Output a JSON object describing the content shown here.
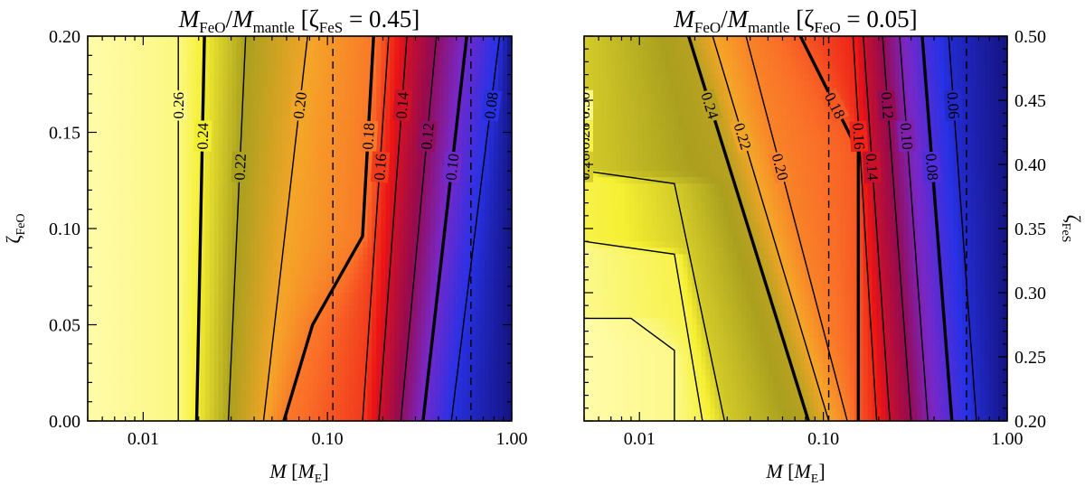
{
  "chart_data": [
    {
      "type": "heatmap",
      "title": "M_FeO/M_mantle [ζ_FeS = 0.45]",
      "title_parts": {
        "m1": "M",
        "s1": "FeO",
        "slash": "/",
        "m2": "M",
        "s2": "mantle",
        "open": " [",
        "zeta": "ζ",
        "sz": "FeS",
        "eq": " = 0.45]"
      },
      "xlabel": "M [M_E]",
      "xlabel_parts": {
        "m": "M",
        "open": " [",
        "mm": "M",
        "sub": "E",
        "close": "]"
      },
      "ylabel": "ζ_FeO",
      "ylabel_parts": {
        "z": "ζ",
        "sub": "FeO"
      },
      "x_scale": "log",
      "xlim": [
        0.005,
        1.0
      ],
      "ylim": [
        0.0,
        0.2
      ],
      "x_ticks": [
        "0.01",
        "0.10",
        "1.00"
      ],
      "y_ticks": [
        "0.00",
        "0.05",
        "0.10",
        "0.15",
        "0.20"
      ],
      "y_axis_side": "left",
      "vertical_dashed_lines_x": [
        0.107,
        0.6
      ],
      "colormap": "cream-yellow-olive-orange-red-purple-blue (high to low)",
      "value_range": [
        0.06,
        0.27
      ],
      "contours": [
        {
          "level": 0.26,
          "label": "0.26",
          "bold": false,
          "x_at_y": [
            [
              0.0,
              0.0155
            ],
            [
              0.2,
              0.0155
            ]
          ]
        },
        {
          "level": 0.24,
          "label": "0.24",
          "bold": true,
          "x_at_y": [
            [
              0.0,
              0.0195
            ],
            [
              0.2,
              0.0215
            ]
          ]
        },
        {
          "level": 0.22,
          "label": "0.22",
          "bold": false,
          "x_at_y": [
            [
              0.0,
              0.029
            ],
            [
              0.2,
              0.036
            ]
          ]
        },
        {
          "level": 0.2,
          "label": "0.20",
          "bold": false,
          "x_at_y": [
            [
              0.0,
              0.045
            ],
            [
              0.2,
              0.078
            ]
          ]
        },
        {
          "level": 0.18,
          "label": "0.18",
          "bold": true,
          "x_at_y": [
            [
              0.0,
              0.058
            ],
            [
              0.05,
              0.083
            ],
            [
              0.096,
              0.155
            ],
            [
              0.2,
              0.178
            ]
          ]
        },
        {
          "level": 0.16,
          "label": "0.16",
          "bold": false,
          "x_at_y": [
            [
              0.0,
              0.155
            ],
            [
              0.2,
              0.215
            ]
          ]
        },
        {
          "level": 0.14,
          "label": "0.14",
          "bold": false,
          "x_at_y": [
            [
              0.0,
              0.19
            ],
            [
              0.2,
              0.27
            ]
          ]
        },
        {
          "level": 0.12,
          "label": "0.12",
          "bold": false,
          "x_at_y": [
            [
              0.0,
              0.25
            ],
            [
              0.2,
              0.39
            ]
          ]
        },
        {
          "level": 0.1,
          "label": "0.10",
          "bold": true,
          "x_at_y": [
            [
              0.0,
              0.33
            ],
            [
              0.2,
              0.57
            ]
          ]
        },
        {
          "level": 0.08,
          "label": "0.08",
          "bold": false,
          "x_at_y": [
            [
              0.0,
              0.47
            ],
            [
              0.2,
              0.86
            ]
          ]
        }
      ]
    },
    {
      "type": "heatmap",
      "title": "M_FeO/M_mantle [ζ_FeO = 0.05]",
      "title_parts": {
        "m1": "M",
        "s1": "FeO",
        "slash": "/",
        "m2": "M",
        "s2": "mantle",
        "open": " [",
        "zeta": "ζ",
        "sz": "FeO",
        "eq": " = 0.05]"
      },
      "xlabel": "M [M_E]",
      "xlabel_parts": {
        "m": "M",
        "open": " [",
        "mm": "M",
        "sub": "E",
        "close": "]"
      },
      "ylabel": "ζ_FeS",
      "ylabel_parts": {
        "z": "ζ",
        "sub": "FeS"
      },
      "x_scale": "log",
      "xlim": [
        0.005,
        1.0
      ],
      "ylim": [
        0.2,
        0.5
      ],
      "x_ticks": [
        "0.01",
        "0.10",
        "1.00"
      ],
      "y_ticks": [
        "0.20",
        "0.25",
        "0.30",
        "0.35",
        "0.40",
        "0.45",
        "0.50"
      ],
      "y_axis_side": "right",
      "vertical_dashed_lines_x": [
        0.107,
        0.6
      ],
      "colormap": "cream-yellow-olive-orange-red-purple-blue (high to low)",
      "value_range": [
        0.04,
        0.31
      ],
      "contours": [
        {
          "level": 0.3,
          "label": "0.30",
          "bold": false,
          "x_at_y": [
            [
              0.2,
              0.0155
            ],
            [
              0.255,
              0.0155
            ],
            [
              0.28,
              0.009
            ],
            [
              0.28,
              0.005
            ]
          ]
        },
        {
          "level": 0.28,
          "label": "0.28",
          "bold": false,
          "x_at_y": [
            [
              0.2,
              0.022
            ],
            [
              0.33,
              0.0155
            ],
            [
              0.34,
              0.005
            ]
          ]
        },
        {
          "level": 0.26,
          "label": "0.26",
          "bold": false,
          "x_at_y": [
            [
              0.2,
              0.029
            ],
            [
              0.385,
              0.0155
            ],
            [
              0.395,
              0.005
            ]
          ]
        },
        {
          "level": 0.24,
          "label": "0.24",
          "bold": true,
          "x_at_y": [
            [
              0.2,
              0.083
            ],
            [
              0.5,
              0.0185
            ]
          ]
        },
        {
          "level": 0.22,
          "label": "0.22",
          "bold": false,
          "x_at_y": [
            [
              0.2,
              0.107
            ],
            [
              0.5,
              0.025
            ]
          ]
        },
        {
          "level": 0.2,
          "label": "0.20",
          "bold": false,
          "x_at_y": [
            [
              0.2,
              0.135
            ],
            [
              0.5,
              0.038
            ]
          ]
        },
        {
          "level": 0.18,
          "label": "0.18",
          "bold": true,
          "x_at_y": [
            [
              0.2,
              0.155
            ],
            [
              0.41,
              0.155
            ],
            [
              0.5,
              0.075
            ]
          ]
        },
        {
          "level": 0.16,
          "label": "0.16",
          "bold": false,
          "x_at_y": [
            [
              0.2,
              0.195
            ],
            [
              0.5,
              0.145
            ]
          ]
        },
        {
          "level": 0.14,
          "label": "0.14",
          "bold": false,
          "x_at_y": [
            [
              0.2,
              0.23
            ],
            [
              0.5,
              0.165
            ]
          ]
        },
        {
          "level": 0.12,
          "label": "0.12",
          "bold": false,
          "x_at_y": [
            [
              0.2,
              0.3
            ],
            [
              0.5,
              0.21
            ]
          ]
        },
        {
          "level": 0.1,
          "label": "0.10",
          "bold": false,
          "x_at_y": [
            [
              0.2,
              0.37
            ],
            [
              0.5,
              0.26
            ]
          ]
        },
        {
          "level": 0.08,
          "label": "0.08",
          "bold": true,
          "x_at_y": [
            [
              0.2,
              0.5
            ],
            [
              0.5,
              0.345
            ]
          ]
        },
        {
          "level": 0.06,
          "label": "0.06",
          "bold": false,
          "x_at_y": [
            [
              0.2,
              0.68
            ],
            [
              0.5,
              0.48
            ]
          ]
        }
      ]
    }
  ]
}
